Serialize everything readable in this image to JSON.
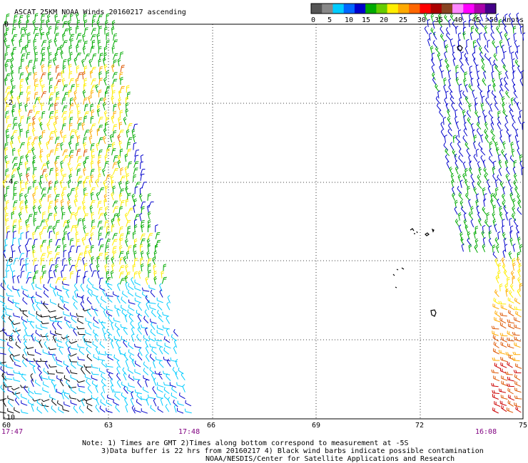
{
  "title": "ASCAT 25KM NOAA Winds 20160217 ascending",
  "legend": {
    "colors": [
      "#555555",
      "#888888",
      "#00ccff",
      "#0066ff",
      "#0000cc",
      "#00aa00",
      "#66cc00",
      "#ffee00",
      "#ffaa00",
      "#ff6600",
      "#ff0000",
      "#aa0000",
      "#884422",
      "#ff88ff",
      "#ff00ff",
      "#aa00aa",
      "#440088"
    ],
    "labels": [
      "0",
      "5",
      "10",
      "15",
      "20",
      "25",
      "30",
      "35",
      "40",
      "45",
      ">50 knots"
    ]
  },
  "axes": {
    "x_ticks": [
      "60",
      "63",
      "66",
      "69",
      "72",
      "75"
    ],
    "y_ticks": [
      "0",
      "-2",
      "-4",
      "-6",
      "-8",
      "-10"
    ]
  },
  "times": {
    "left": "17:47",
    "middle": "17:48",
    "right": "16:08"
  },
  "notes": {
    "line1": "Note: 1) Times are GMT 2)Times along bottom correspond to measurement at -5S",
    "line2": "3)Data buffer is 22 hrs from 20160217 4) Black wind barbs indicate possible contamination",
    "line3": "NOAA/NESDIS/Center for Satellite Applications and Research"
  },
  "wind_colors": {
    "black": "#000000",
    "cyan": "#00ccff",
    "blue": "#0000cc",
    "green": "#00aa00",
    "yellow": "#ffee00",
    "orange": "#ffaa00",
    "darkorange": "#dd5500",
    "red": "#cc0000"
  }
}
